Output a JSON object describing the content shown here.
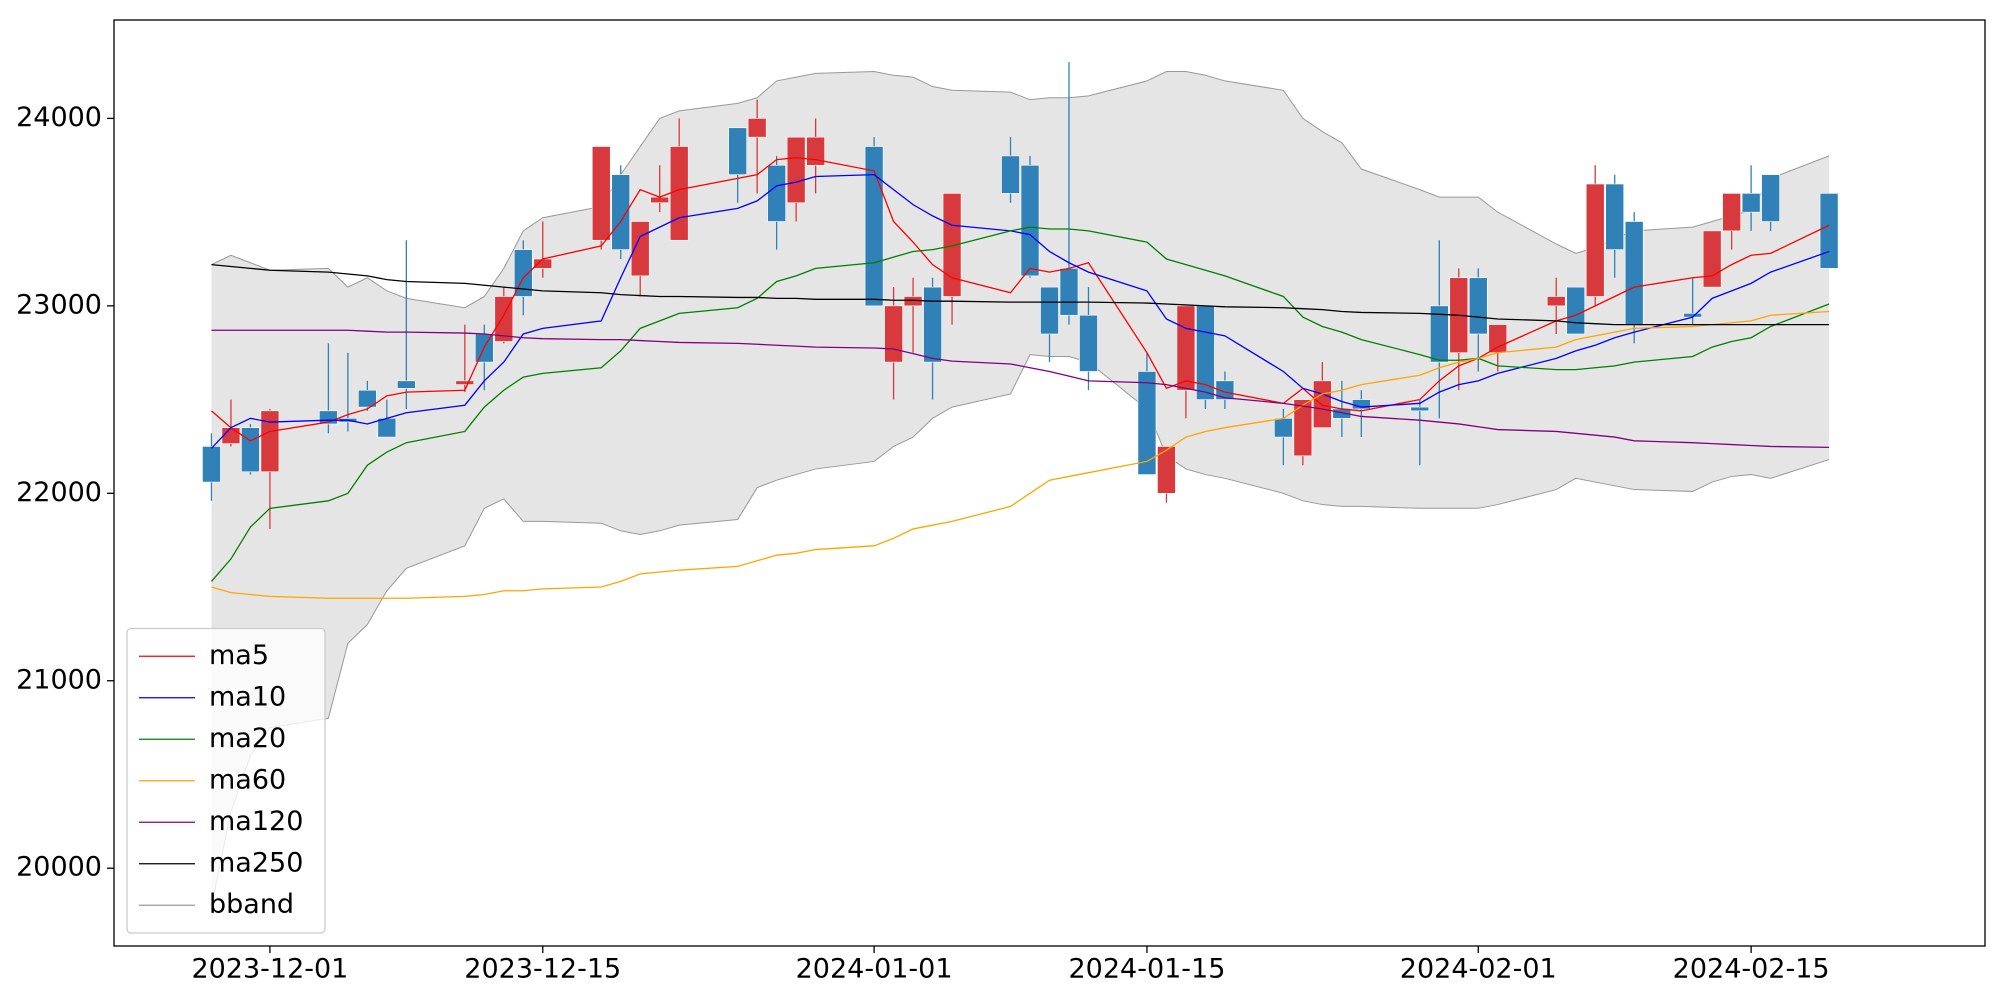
{
  "chart_data": {
    "type": "candlestick",
    "x": [
      "2023-11-28",
      "2023-11-29",
      "2023-11-30",
      "2023-12-01",
      "2023-12-04",
      "2023-12-05",
      "2023-12-06",
      "2023-12-07",
      "2023-12-08",
      "2023-12-11",
      "2023-12-12",
      "2023-12-13",
      "2023-12-14",
      "2023-12-15",
      "2023-12-18",
      "2023-12-19",
      "2023-12-20",
      "2023-12-21",
      "2023-12-22",
      "2023-12-25",
      "2023-12-26",
      "2023-12-27",
      "2023-12-28",
      "2023-12-29",
      "2024-01-01",
      "2024-01-02",
      "2024-01-03",
      "2024-01-04",
      "2024-01-05",
      "2024-01-08",
      "2024-01-09",
      "2024-01-10",
      "2024-01-11",
      "2024-01-12",
      "2024-01-15",
      "2024-01-16",
      "2024-01-17",
      "2024-01-18",
      "2024-01-19",
      "2024-01-22",
      "2024-01-23",
      "2024-01-24",
      "2024-01-25",
      "2024-01-26",
      "2024-01-29",
      "2024-01-30",
      "2024-01-31",
      "2024-02-01",
      "2024-02-02",
      "2024-02-05",
      "2024-02-06",
      "2024-02-07",
      "2024-02-08",
      "2024-02-09",
      "2024-02-12",
      "2024-02-13",
      "2024-02-14",
      "2024-02-15",
      "2024-02-16",
      "2024-02-19"
    ],
    "open": [
      22250,
      22265,
      22350,
      22115,
      22440,
      22400,
      22550,
      22400,
      22600,
      22580,
      22850,
      22810,
      23300,
      23200,
      23350,
      23700,
      23160,
      23550,
      23350,
      23950,
      23900,
      23750,
      23550,
      23750,
      23850,
      22700,
      23000,
      23100,
      23050,
      23800,
      23750,
      23100,
      23200,
      22950,
      22650,
      22000,
      22550,
      23000,
      22600,
      22400,
      22200,
      22350,
      22450,
      22500,
      22460,
      23000,
      22750,
      23150,
      22750,
      23000,
      23100,
      23050,
      23650,
      23450,
      22960,
      23100,
      23400,
      23600,
      23700,
      23600
    ],
    "high": [
      22320,
      22500,
      22370,
      22450,
      22800,
      22750,
      22600,
      22500,
      23350,
      22900,
      22900,
      23100,
      23350,
      23450,
      23850,
      23750,
      23450,
      23750,
      24000,
      23950,
      24100,
      23800,
      23900,
      24000,
      23900,
      23100,
      23150,
      23150,
      23600,
      23900,
      23800,
      23100,
      24300,
      23100,
      22750,
      22250,
      23000,
      23000,
      22650,
      22450,
      22500,
      22700,
      22600,
      22550,
      22500,
      23350,
      23200,
      23200,
      22900,
      23150,
      23100,
      23750,
      23700,
      23500,
      23150,
      23400,
      23600,
      23750,
      23700,
      23600
    ],
    "low": [
      21960,
      22250,
      22100,
      21810,
      22320,
      22330,
      22440,
      22300,
      22450,
      22540,
      22550,
      22800,
      22950,
      23150,
      23300,
      23250,
      23050,
      23500,
      23350,
      23550,
      23600,
      23300,
      23450,
      23600,
      23000,
      22500,
      22750,
      22500,
      22900,
      23550,
      23150,
      22700,
      22900,
      22550,
      22100,
      21950,
      22400,
      22450,
      22450,
      22150,
      22150,
      22350,
      22300,
      22300,
      22150,
      22400,
      22550,
      22650,
      22650,
      22850,
      22850,
      23000,
      23150,
      22800,
      22900,
      23100,
      23300,
      23400,
      23400,
      23200
    ],
    "close": [
      22060,
      22350,
      22115,
      22440,
      22370,
      22380,
      22460,
      22300,
      22560,
      22600,
      22700,
      23050,
      23050,
      23250,
      23850,
      23300,
      23450,
      23580,
      23850,
      23700,
      24000,
      23450,
      23900,
      23900,
      23000,
      23000,
      23050,
      22700,
      23600,
      23600,
      23160,
      22850,
      22950,
      22650,
      22100,
      22250,
      23000,
      22500,
      22500,
      22300,
      22500,
      22600,
      22400,
      22450,
      22440,
      22700,
      23150,
      22850,
      22900,
      23050,
      22850,
      23650,
      23300,
      22900,
      22940,
      23400,
      23600,
      23500,
      23450,
      23200
    ],
    "up_color": "#d8393c",
    "down_color": "#2f81b7",
    "series": [
      {
        "name": "ma5",
        "color": "red",
        "values": [
          22440,
          22350,
          22280,
          22330,
          22380,
          22420,
          22450,
          22520,
          22540,
          22550,
          22780,
          22950,
          23150,
          23250,
          23320,
          23450,
          23620,
          23580,
          23620,
          23680,
          23700,
          23780,
          23790,
          23780,
          23720,
          23450,
          23340,
          23220,
          23150,
          23070,
          23200,
          23180,
          23200,
          23230,
          22750,
          22560,
          22600,
          22580,
          22540,
          22480,
          22560,
          22470,
          22450,
          22440,
          22500,
          22600,
          22680,
          22720,
          22780,
          22920,
          22950,
          23000,
          23050,
          23100,
          23150,
          23160,
          23220,
          23270,
          23280,
          23430
        ]
      },
      {
        "name": "ma10",
        "color": "blue",
        "values": [
          22240,
          22350,
          22400,
          22380,
          22390,
          22390,
          22370,
          22400,
          22430,
          22470,
          22600,
          22700,
          22850,
          22880,
          22920,
          23150,
          23370,
          23420,
          23470,
          23520,
          23560,
          23640,
          23660,
          23690,
          23700,
          23620,
          23540,
          23480,
          23430,
          23400,
          23380,
          23290,
          23230,
          23180,
          23080,
          22930,
          22880,
          22860,
          22840,
          22650,
          22560,
          22530,
          22490,
          22460,
          22480,
          22540,
          22580,
          22600,
          22640,
          22720,
          22760,
          22790,
          22830,
          22860,
          22940,
          23040,
          23080,
          23120,
          23180,
          23290
        ]
      },
      {
        "name": "ma20",
        "color": "green",
        "values": [
          21530,
          21650,
          21820,
          21920,
          21960,
          22000,
          22150,
          22220,
          22270,
          22330,
          22460,
          22550,
          22620,
          22640,
          22670,
          22760,
          22880,
          22920,
          22960,
          22990,
          23040,
          23130,
          23160,
          23200,
          23230,
          23260,
          23290,
          23300,
          23320,
          23400,
          23420,
          23410,
          23410,
          23400,
          23340,
          23250,
          23220,
          23190,
          23160,
          23050,
          22940,
          22890,
          22860,
          22820,
          22740,
          22710,
          22710,
          22720,
          22680,
          22660,
          22660,
          22670,
          22680,
          22700,
          22730,
          22780,
          22810,
          22830,
          22890,
          23010
        ]
      },
      {
        "name": "ma60",
        "color": "orange",
        "values": [
          21500,
          21470,
          21460,
          21450,
          21440,
          21440,
          21440,
          21440,
          21440,
          21450,
          21460,
          21480,
          21480,
          21490,
          21500,
          21530,
          21570,
          21580,
          21590,
          21610,
          21640,
          21670,
          21680,
          21700,
          21720,
          21760,
          21810,
          21830,
          21850,
          21930,
          22000,
          22070,
          22090,
          22110,
          22170,
          22230,
          22300,
          22330,
          22350,
          22400,
          22470,
          22530,
          22550,
          22580,
          22630,
          22670,
          22700,
          22720,
          22750,
          22780,
          22820,
          22840,
          22860,
          22880,
          22890,
          22900,
          22910,
          22920,
          22950,
          22970
        ]
      },
      {
        "name": "ma120",
        "color": "purple",
        "values": [
          22870,
          22870,
          22870,
          22870,
          22870,
          22870,
          22865,
          22860,
          22860,
          22855,
          22850,
          22840,
          22830,
          22825,
          22820,
          22820,
          22815,
          22810,
          22805,
          22800,
          22795,
          22790,
          22785,
          22780,
          22775,
          22770,
          22745,
          22720,
          22705,
          22690,
          22670,
          22650,
          22625,
          22600,
          22590,
          22580,
          22560,
          22540,
          22510,
          22480,
          22465,
          22450,
          22430,
          22410,
          22390,
          22380,
          22370,
          22355,
          22340,
          22330,
          22320,
          22310,
          22300,
          22280,
          22270,
          22265,
          22260,
          22255,
          22250,
          22245
        ]
      },
      {
        "name": "ma250",
        "color": "black",
        "values": [
          23220,
          23210,
          23200,
          23190,
          23180,
          23170,
          23160,
          23140,
          23130,
          23120,
          23110,
          23100,
          23090,
          23080,
          23070,
          23060,
          23055,
          23050,
          23050,
          23045,
          23045,
          23040,
          23040,
          23035,
          23035,
          23030,
          23030,
          23025,
          23025,
          23020,
          23020,
          23020,
          23020,
          23020,
          23015,
          23010,
          23005,
          23000,
          22995,
          22990,
          22985,
          22980,
          22970,
          22965,
          22960,
          22955,
          22950,
          22940,
          22930,
          22920,
          22910,
          22905,
          22900,
          22900,
          22900,
          22900,
          22900,
          22900,
          22900,
          22900
        ]
      }
    ],
    "band": {
      "name": "bband",
      "color": "#999999",
      "fill": "#e5e5e5",
      "upper": [
        23220,
        23270,
        23230,
        23190,
        23200,
        23100,
        23150,
        23080,
        23040,
        22990,
        23050,
        23200,
        23400,
        23470,
        23530,
        23700,
        23850,
        24000,
        24040,
        24080,
        24110,
        24200,
        24220,
        24240,
        24250,
        24230,
        24220,
        24170,
        24150,
        24140,
        24100,
        24110,
        24110,
        24120,
        24200,
        24250,
        24250,
        24230,
        24200,
        24150,
        24000,
        23930,
        23870,
        23730,
        23620,
        23580,
        23580,
        23580,
        23500,
        23330,
        23280,
        23310,
        23360,
        23400,
        23420,
        23450,
        23480,
        23510,
        23680,
        23800
      ],
      "lower": [
        19800,
        20300,
        20600,
        20750,
        20800,
        21200,
        21300,
        21480,
        21600,
        21720,
        21920,
        21970,
        21850,
        21850,
        21840,
        21800,
        21780,
        21800,
        21830,
        21860,
        22030,
        22070,
        22100,
        22130,
        22170,
        22250,
        22300,
        22400,
        22460,
        22530,
        22740,
        22730,
        22730,
        22700,
        22450,
        22200,
        22130,
        22100,
        22080,
        22000,
        21960,
        21940,
        21930,
        21930,
        21920,
        21920,
        21920,
        21920,
        21940,
        22020,
        22080,
        22060,
        22040,
        22020,
        22010,
        22060,
        22090,
        22100,
        22080,
        22180
      ]
    },
    "xlim": [
      "2023-11-23",
      "2024-02-27"
    ],
    "xticks": [
      "2023-12-01",
      "2023-12-15",
      "2024-01-01",
      "2024-01-15",
      "2024-02-01",
      "2024-02-15"
    ],
    "ylim": [
      19585,
      24525
    ],
    "yticks": [
      20000,
      21000,
      22000,
      23000,
      24000
    ],
    "legend": "lower left"
  }
}
